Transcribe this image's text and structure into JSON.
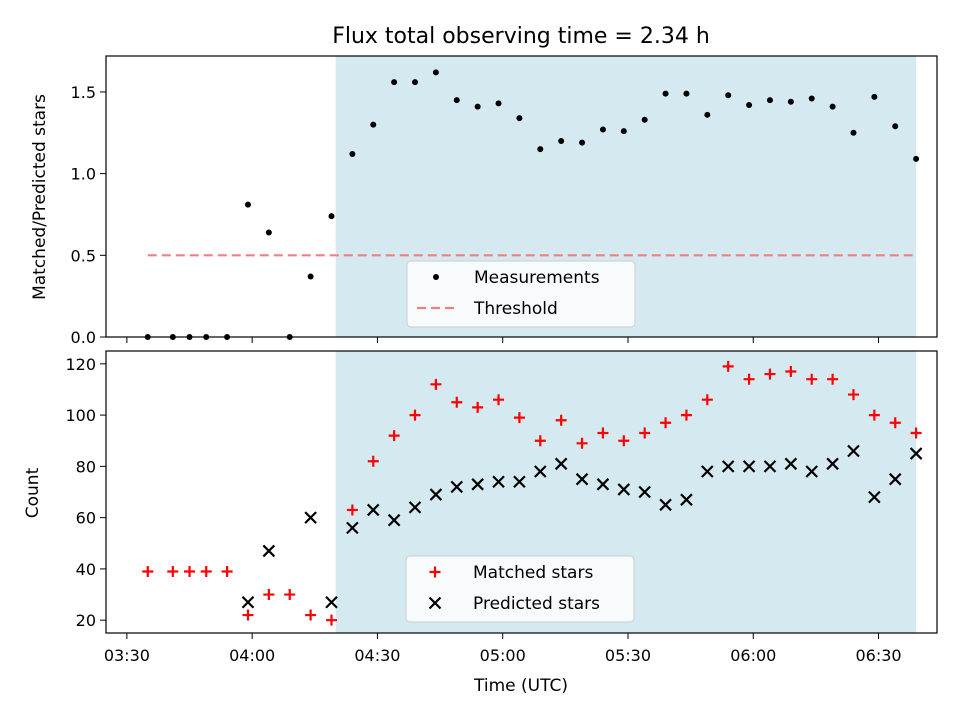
{
  "chart_data": [
    {
      "type": "scatter",
      "title": "Flux total observing time = 2.34 h",
      "ylabel": "Matched/Predicted stars",
      "xlabel": "",
      "xlim": [
        "03:25",
        "06:44"
      ],
      "ylim": [
        0,
        1.72
      ],
      "yticks": [
        0.0,
        0.5,
        1.0,
        1.5
      ],
      "ytick_labels": [
        "0.0",
        "0.5",
        "1.0",
        "1.5"
      ],
      "shaded_span": [
        "04:20",
        "06:39"
      ],
      "shaded_color": "#d4eaf0",
      "legend_position": "lower center",
      "series": [
        {
          "name": "Measurements",
          "marker": "dot",
          "color": "#000000",
          "x": [
            "03:35",
            "03:41",
            "03:45",
            "03:49",
            "03:54",
            "03:59",
            "04:04",
            "04:09",
            "04:14",
            "04:19",
            "04:24",
            "04:29",
            "04:34",
            "04:39",
            "04:44",
            "04:49",
            "04:54",
            "04:59",
            "05:04",
            "05:09",
            "05:14",
            "05:19",
            "05:24",
            "05:29",
            "05:34",
            "05:39",
            "05:44",
            "05:49",
            "05:54",
            "05:59",
            "06:04",
            "06:09",
            "06:14",
            "06:19",
            "06:24",
            "06:29",
            "06:34",
            "06:39"
          ],
          "y": [
            0.0,
            0.0,
            0.0,
            0.0,
            0.0,
            0.81,
            0.64,
            0.0,
            0.37,
            0.74,
            1.12,
            1.3,
            1.56,
            1.56,
            1.62,
            1.45,
            1.41,
            1.43,
            1.34,
            1.15,
            1.2,
            1.19,
            1.27,
            1.26,
            1.33,
            1.49,
            1.49,
            1.36,
            1.48,
            1.42,
            1.45,
            1.44,
            1.46,
            1.41,
            1.25,
            1.47,
            1.29,
            1.09
          ]
        },
        {
          "name": "Threshold",
          "marker": "dashed-line",
          "color": "#f08080",
          "x": [
            "03:35",
            "06:39"
          ],
          "y": [
            0.5,
            0.5
          ]
        }
      ]
    },
    {
      "type": "scatter",
      "title": "",
      "ylabel": "Count",
      "xlabel": "Time (UTC)",
      "xlim": [
        "03:25",
        "06:44"
      ],
      "ylim": [
        15,
        125
      ],
      "yticks": [
        20,
        40,
        60,
        80,
        100,
        120
      ],
      "ytick_labels": [
        "20",
        "40",
        "60",
        "80",
        "100",
        "120"
      ],
      "xticks": [
        "03:30",
        "04:00",
        "04:30",
        "05:00",
        "05:30",
        "06:00",
        "06:30"
      ],
      "xtick_labels": [
        "03:30",
        "04:00",
        "04:30",
        "05:00",
        "05:30",
        "06:00",
        "06:30"
      ],
      "shaded_span": [
        "04:20",
        "06:39"
      ],
      "shaded_color": "#d4eaf0",
      "legend_position": "lower center",
      "series": [
        {
          "name": "Matched stars",
          "marker": "plus",
          "color": "#ff0000",
          "x": [
            "03:35",
            "03:41",
            "03:45",
            "03:49",
            "03:54",
            "03:59",
            "04:04",
            "04:09",
            "04:14",
            "04:19",
            "04:24",
            "04:29",
            "04:34",
            "04:39",
            "04:44",
            "04:49",
            "04:54",
            "04:59",
            "05:04",
            "05:09",
            "05:14",
            "05:19",
            "05:24",
            "05:29",
            "05:34",
            "05:39",
            "05:44",
            "05:49",
            "05:54",
            "05:59",
            "06:04",
            "06:09",
            "06:14",
            "06:19",
            "06:24",
            "06:29",
            "06:34",
            "06:39"
          ],
          "y": [
            39,
            39,
            39,
            39,
            39,
            22,
            30,
            30,
            22,
            20,
            63,
            82,
            92,
            100,
            112,
            105,
            103,
            106,
            99,
            90,
            98,
            89,
            93,
            90,
            93,
            97,
            100,
            106,
            119,
            114,
            116,
            117,
            114,
            114,
            108,
            100,
            97,
            93
          ]
        },
        {
          "name": "Predicted stars",
          "marker": "x",
          "color": "#000000",
          "x": [
            "03:59",
            "04:04",
            "04:14",
            "04:19",
            "04:24",
            "04:29",
            "04:34",
            "04:39",
            "04:44",
            "04:49",
            "04:54",
            "04:59",
            "05:04",
            "05:09",
            "05:14",
            "05:19",
            "05:24",
            "05:29",
            "05:34",
            "05:39",
            "05:44",
            "05:49",
            "05:54",
            "05:59",
            "06:04",
            "06:09",
            "06:14",
            "06:19",
            "06:24",
            "06:29",
            "06:34",
            "06:39"
          ],
          "y": [
            27,
            47,
            60,
            27,
            56,
            63,
            59,
            64,
            69,
            72,
            73,
            74,
            74,
            78,
            81,
            75,
            73,
            71,
            70,
            65,
            67,
            78,
            80,
            80,
            80,
            81,
            78,
            81,
            86,
            68,
            75,
            85
          ]
        }
      ]
    }
  ]
}
